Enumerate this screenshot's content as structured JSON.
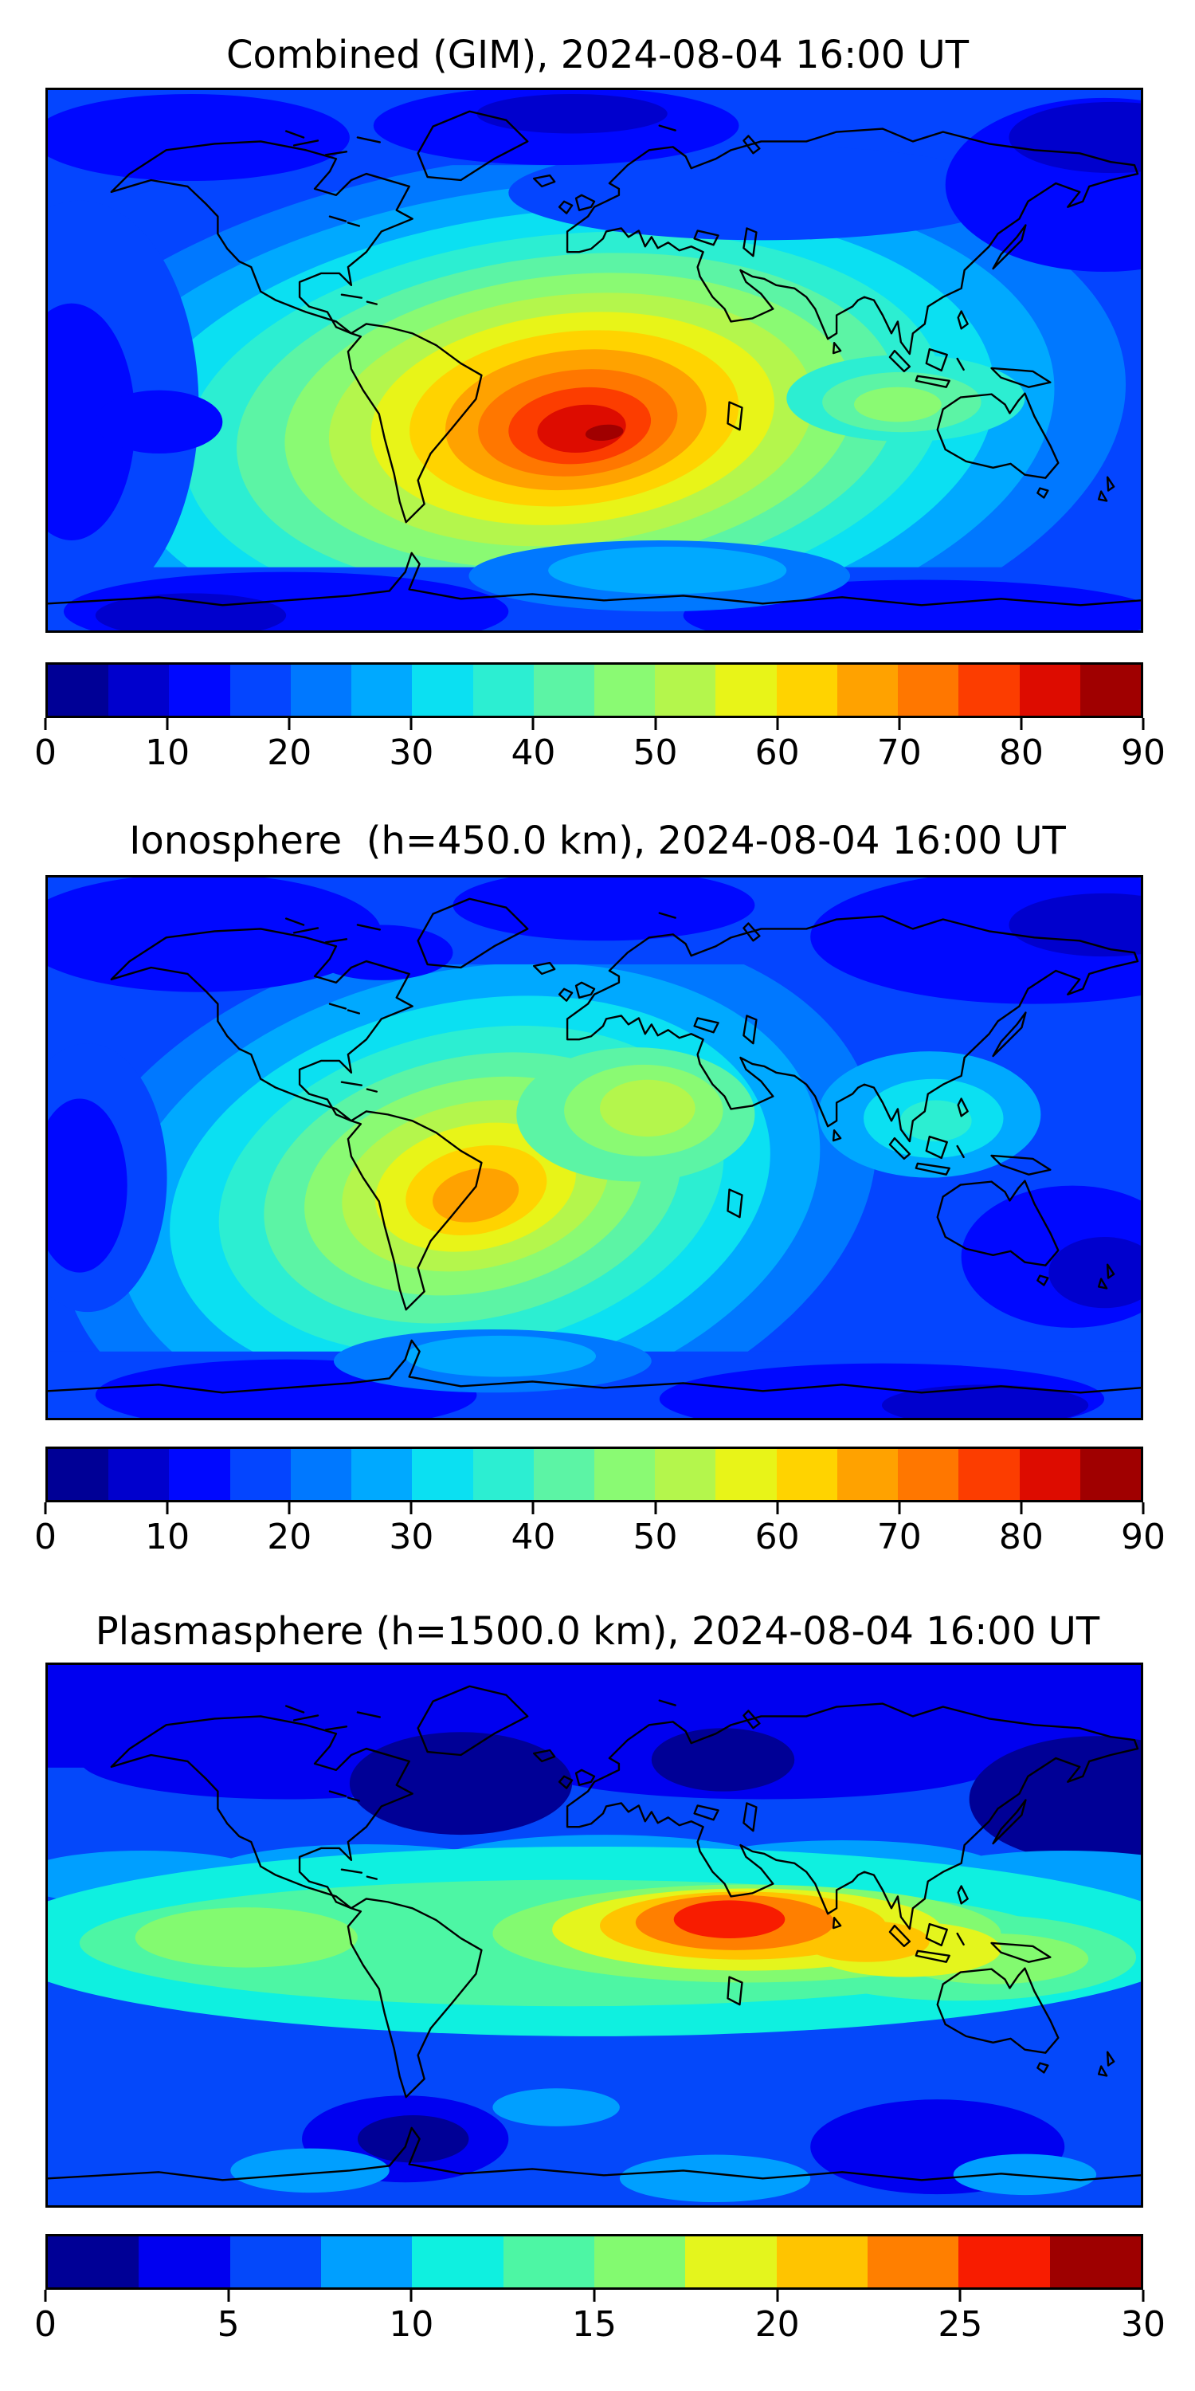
{
  "figure": {
    "background": "#ffffff",
    "panels": [
      {
        "title": "Combined (GIM), 2024-08-04 16:00 UT",
        "colorbar": {
          "min": 0,
          "max": 90,
          "segment_step": 5,
          "n_segments": 18,
          "ticks": [
            0,
            10,
            20,
            30,
            40,
            50,
            60,
            70,
            80,
            90
          ],
          "colors": [
            "#000096",
            "#0000cd",
            "#0008ff",
            "#0445ff",
            "#0078ff",
            "#00a9ff",
            "#0be0f2",
            "#2ceed2",
            "#5cf4a5",
            "#8afa73",
            "#b4f64c",
            "#e8f418",
            "#ffd300",
            "#ffa200",
            "#ff7700",
            "#fc3d00",
            "#dd0c00",
            "#a00000"
          ]
        }
      },
      {
        "title": "Ionosphere  (h=450.0 km), 2024-08-04 16:00 UT",
        "colorbar": {
          "min": 0,
          "max": 90,
          "segment_step": 5,
          "n_segments": 18,
          "ticks": [
            0,
            10,
            20,
            30,
            40,
            50,
            60,
            70,
            80,
            90
          ],
          "colors": [
            "#000096",
            "#0000cd",
            "#0008ff",
            "#0445ff",
            "#0078ff",
            "#00a9ff",
            "#0be0f2",
            "#2ceed2",
            "#5cf4a5",
            "#8afa73",
            "#b4f64c",
            "#e8f418",
            "#ffd300",
            "#ffa200",
            "#ff7700",
            "#fc3d00",
            "#dd0c00",
            "#a00000"
          ]
        }
      },
      {
        "title": "Plasmasphere (h=1500.0 km), 2024-08-04 16:00 UT",
        "colorbar": {
          "min": 0,
          "max": 30,
          "segment_step": 2.5,
          "n_segments": 12,
          "ticks": [
            0,
            5,
            10,
            15,
            20,
            25,
            30
          ],
          "colors": [
            "#000096",
            "#0000f0",
            "#0448fa",
            "#009fff",
            "#0ff0e0",
            "#4df6a4",
            "#83fa70",
            "#e4f51d",
            "#ffc400",
            "#ff7f00",
            "#f81c00",
            "#9e0000"
          ]
        }
      }
    ]
  },
  "chart_data": [
    {
      "type": "heatmap",
      "title": "Combined (GIM), 2024-08-04 16:00 UT",
      "datetime_label": "2024-08-04 16:00 UT",
      "projection": "equirectangular world map with coastlines",
      "lon_range": [
        -180,
        180
      ],
      "lat_range": [
        -90,
        90
      ],
      "colormap": "jet",
      "levels": {
        "min": 0,
        "max": 90,
        "step": 5
      },
      "colorbar_ticks": [
        0,
        10,
        20,
        30,
        40,
        50,
        60,
        70,
        80,
        90
      ],
      "legend_position": "horizontal colorbar below map",
      "grid": false,
      "features": [
        {
          "region": "equatorial anomaly peak over eastern South America / South Atlantic",
          "approx_center_lon": -25,
          "approx_center_lat": -5,
          "value_range": "85-90"
        },
        {
          "region": "broad high band Brazil to West Africa",
          "value_range": "70-85"
        },
        {
          "region": "yellow-green halo over Americas, Atlantic, North Africa",
          "value_range": "45-65"
        },
        {
          "region": "moderate patch over India / Southeast Asia",
          "value_range": "35-50"
        },
        {
          "region": "high latitudes, poles and night-side Pacific",
          "value_range": "0-20"
        }
      ]
    },
    {
      "type": "heatmap",
      "title": "Ionosphere  (h=450.0 km), 2024-08-04 16:00 UT",
      "datetime_label": "2024-08-04 16:00 UT",
      "height_km": 450.0,
      "projection": "equirectangular world map with coastlines",
      "lon_range": [
        -180,
        180
      ],
      "lat_range": [
        -90,
        90
      ],
      "colormap": "jet",
      "levels": {
        "min": 0,
        "max": 90,
        "step": 5
      },
      "colorbar_ticks": [
        0,
        10,
        20,
        30,
        40,
        50,
        60,
        70,
        80,
        90
      ],
      "legend_position": "horizontal colorbar below map",
      "grid": false,
      "features": [
        {
          "region": "peak over central South America (Brazil/Bolivia)",
          "approx_center_lon": -55,
          "approx_center_lat": -15,
          "value_range": "65-70"
        },
        {
          "region": "yellow ring over South America and tropical Atlantic",
          "value_range": "55-65"
        },
        {
          "region": "green-cyan halo to Africa and Caribbean",
          "value_range": "30-55"
        },
        {
          "region": "weak cyan pocket near India / Indian Ocean",
          "value_range": "25-35"
        },
        {
          "region": "poles, Pacific and Australia",
          "value_range": "0-20"
        }
      ]
    },
    {
      "type": "heatmap",
      "title": "Plasmasphere (h=1500.0 km), 2024-08-04 16:00 UT",
      "datetime_label": "2024-08-04 16:00 UT",
      "height_km": 1500.0,
      "projection": "equirectangular world map with coastlines",
      "lon_range": [
        -180,
        180
      ],
      "lat_range": [
        -90,
        90
      ],
      "colormap": "jet",
      "levels": {
        "min": 0,
        "max": 30,
        "step": 2.5
      },
      "colorbar_ticks": [
        0,
        5,
        10,
        15,
        20,
        25,
        30
      ],
      "legend_position": "horizontal colorbar below map",
      "grid": false,
      "features": [
        {
          "region": "peak over central/northern Africa and Arabian Peninsula",
          "approx_center_lon": 20,
          "approx_center_lat": 10,
          "value_range": "25-27.5"
        },
        {
          "region": "orange-gold band Sahara to Arabian Sea / India",
          "value_range": "17.5-25"
        },
        {
          "region": "global equatorial cyan-green band",
          "value_range": "10-17.5"
        },
        {
          "region": "mid-latitude blue bands",
          "value_range": "5-10"
        },
        {
          "region": "polar dark blue minima patches",
          "value_range": "0-5"
        }
      ]
    }
  ]
}
